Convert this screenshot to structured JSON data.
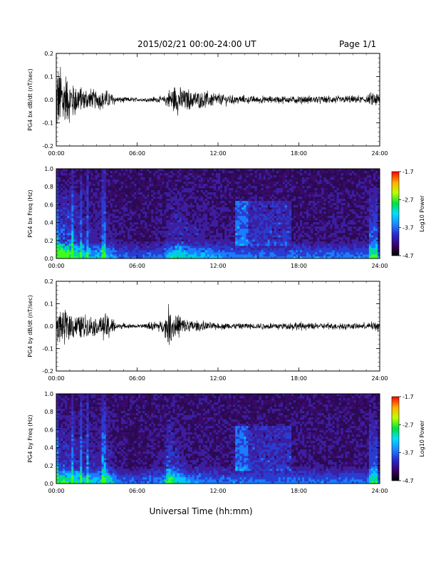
{
  "header": {
    "title": "2015/02/21  00:00-24:00 UT",
    "page": "Page 1/1"
  },
  "xlabel": "Universal Time (hh:mm)",
  "colorbar": {
    "label": "Log10 Power",
    "ticks": [
      "-1.7",
      "-2.7",
      "-3.7",
      "-4.7"
    ],
    "range": [
      -4.7,
      -1.7
    ]
  },
  "x_ticks": [
    "00:00",
    "06:00",
    "12:00",
    "18:00",
    "24:00"
  ],
  "chart_data": [
    {
      "type": "line",
      "ylabel": "PG4 bx dB/dt (nT/sec)",
      "xlim": [
        0,
        24
      ],
      "ylim": [
        -0.2,
        0.2
      ],
      "y_ticks": [
        "0.2",
        "0.1",
        "0.0",
        "-0.1",
        "-0.2"
      ],
      "grid": false,
      "activity_envelope": [
        {
          "x": 0.0,
          "amp": 0.12
        },
        {
          "x": 0.5,
          "amp": 0.1
        },
        {
          "x": 1.0,
          "amp": 0.07
        },
        {
          "x": 2.0,
          "amp": 0.04
        },
        {
          "x": 3.0,
          "amp": 0.03
        },
        {
          "x": 3.8,
          "amp": 0.03
        },
        {
          "x": 4.5,
          "amp": 0.01
        },
        {
          "x": 6.0,
          "amp": 0.005
        },
        {
          "x": 8.0,
          "amp": 0.01
        },
        {
          "x": 8.5,
          "amp": 0.04
        },
        {
          "x": 9.0,
          "amp": 0.05
        },
        {
          "x": 10.0,
          "amp": 0.03
        },
        {
          "x": 11.0,
          "amp": 0.03
        },
        {
          "x": 12.0,
          "amp": 0.02
        },
        {
          "x": 14.0,
          "amp": 0.012
        },
        {
          "x": 16.0,
          "amp": 0.01
        },
        {
          "x": 18.0,
          "amp": 0.012
        },
        {
          "x": 20.0,
          "amp": 0.012
        },
        {
          "x": 23.0,
          "amp": 0.012
        },
        {
          "x": 23.7,
          "amp": 0.03
        },
        {
          "x": 24.0,
          "amp": 0.02
        }
      ]
    },
    {
      "type": "heatmap",
      "ylabel": "PG4 bx Freq (Hz)",
      "xlim": [
        0,
        24
      ],
      "ylim": [
        0.0,
        1.0
      ],
      "y_ticks": [
        "1.0",
        "0.8",
        "0.6",
        "0.4",
        "0.2",
        "0.0"
      ],
      "zlim": [
        -4.7,
        -1.7
      ]
    },
    {
      "type": "line",
      "ylabel": "PG4 by dB/dt (nT/sec)",
      "xlim": [
        0,
        24
      ],
      "ylim": [
        -0.2,
        0.2
      ],
      "y_ticks": [
        "0.2",
        "0.1",
        "0.0",
        "-0.1",
        "-0.2"
      ],
      "grid": false,
      "activity_envelope": [
        {
          "x": 0.0,
          "amp": 0.05
        },
        {
          "x": 0.5,
          "amp": 0.06
        },
        {
          "x": 1.0,
          "amp": 0.05
        },
        {
          "x": 2.0,
          "amp": 0.04
        },
        {
          "x": 3.0,
          "amp": 0.03
        },
        {
          "x": 3.8,
          "amp": 0.05
        },
        {
          "x": 4.5,
          "amp": 0.01
        },
        {
          "x": 6.0,
          "amp": 0.004
        },
        {
          "x": 8.0,
          "amp": 0.02
        },
        {
          "x": 8.3,
          "amp": 0.07
        },
        {
          "x": 9.0,
          "amp": 0.04
        },
        {
          "x": 10.0,
          "amp": 0.02
        },
        {
          "x": 11.0,
          "amp": 0.015
        },
        {
          "x": 12.0,
          "amp": 0.01
        },
        {
          "x": 14.0,
          "amp": 0.01
        },
        {
          "x": 16.0,
          "amp": 0.01
        },
        {
          "x": 18.0,
          "amp": 0.012
        },
        {
          "x": 20.0,
          "amp": 0.01
        },
        {
          "x": 23.0,
          "amp": 0.01
        },
        {
          "x": 23.7,
          "amp": 0.02
        },
        {
          "x": 24.0,
          "amp": 0.015
        }
      ]
    },
    {
      "type": "heatmap",
      "ylabel": "PG4 by Freq (Hz)",
      "xlim": [
        0,
        24
      ],
      "ylim": [
        0.0,
        1.0
      ],
      "y_ticks": [
        "1.0",
        "0.8",
        "0.6",
        "0.4",
        "0.2",
        "0.0"
      ],
      "zlim": [
        -4.7,
        -1.7
      ]
    }
  ]
}
